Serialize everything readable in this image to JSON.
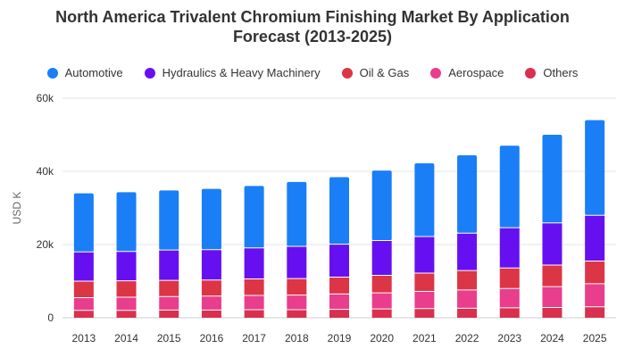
{
  "chart_data": {
    "type": "bar",
    "stacked": true,
    "title_line1": "North America Trivalent Chromium Finishing Market By Application",
    "title_line2": "Forecast (2013-2025)",
    "ylabel": "USD K",
    "xlabel": "",
    "ylim": [
      0,
      60000
    ],
    "yticks": [
      0,
      20000,
      40000,
      60000
    ],
    "ytick_labels": [
      "0",
      "20k",
      "40k",
      "60k"
    ],
    "grid": true,
    "legend_position": "top-center",
    "categories": [
      "2013",
      "2014",
      "2015",
      "2016",
      "2017",
      "2018",
      "2019",
      "2020",
      "2021",
      "2022",
      "2023",
      "2024",
      "2025"
    ],
    "series": [
      {
        "name": "Others",
        "color": "#d9304f",
        "values": [
          2000,
          2000,
          2100,
          2100,
          2200,
          2200,
          2300,
          2400,
          2500,
          2600,
          2700,
          2800,
          3000
        ]
      },
      {
        "name": "Aerospace",
        "color": "#e83e8c",
        "values": [
          3500,
          3600,
          3700,
          3800,
          3900,
          4000,
          4200,
          4400,
          4700,
          5000,
          5300,
          5700,
          6300
        ]
      },
      {
        "name": "Oil & Gas",
        "color": "#dc3545",
        "values": [
          4500,
          4500,
          4400,
          4400,
          4500,
          4500,
          4600,
          4800,
          5000,
          5300,
          5600,
          5900,
          6200
        ]
      },
      {
        "name": "Hydraulics & Heavy Machinery",
        "color": "#6610f2",
        "values": [
          8000,
          8000,
          8300,
          8300,
          8500,
          8800,
          9000,
          9500,
          10000,
          10200,
          11000,
          11500,
          12500
        ]
      },
      {
        "name": "Automotive",
        "color": "#1a7ef7",
        "values": [
          16000,
          16200,
          16300,
          16600,
          16900,
          17600,
          18300,
          19100,
          20000,
          21300,
          22400,
          24100,
          26000
        ]
      }
    ],
    "legend_order": [
      "Automotive",
      "Hydraulics & Heavy Machinery",
      "Oil & Gas",
      "Aerospace",
      "Others"
    ]
  }
}
